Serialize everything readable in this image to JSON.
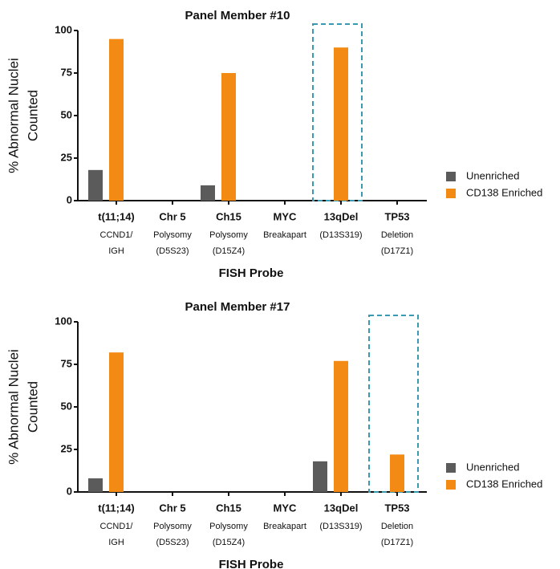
{
  "chart_data": [
    {
      "type": "bar",
      "title": "Panel Member #10",
      "categories": [
        "t(11;14)",
        "Chr 5",
        "Ch15",
        "MYC",
        "13qDel",
        "TP53"
      ],
      "category_sublabels": [
        [
          "CCND1/",
          "IGH"
        ],
        [
          "Polysomy",
          "(D5S23)"
        ],
        [
          "Polysomy",
          "(D15Z4)"
        ],
        [
          "Breakapart"
        ],
        [
          "(D13S319)"
        ],
        [
          "Deletion",
          "(D17Z1)"
        ]
      ],
      "series": [
        {
          "name": "Unenriched",
          "color": "#5b5b5b",
          "values": [
            18,
            0,
            9,
            0,
            0,
            0
          ]
        },
        {
          "name": "CD138 Enriched",
          "color": "#f28a14",
          "values": [
            95,
            0,
            75,
            0,
            90,
            0
          ]
        }
      ],
      "ylim": [
        0,
        100
      ],
      "yticks": [
        0,
        25,
        50,
        75,
        100
      ],
      "ylabel": [
        "% Abnormal Nuclei",
        "Counted"
      ],
      "xlabel": "FISH Probe",
      "highlight_category": 4,
      "highlight_color": "#3a9bb0"
    },
    {
      "type": "bar",
      "title": "Panel Member #17",
      "categories": [
        "t(11;14)",
        "Chr 5",
        "Ch15",
        "MYC",
        "13qDel",
        "TP53"
      ],
      "category_sublabels": [
        [
          "CCND1/",
          "IGH"
        ],
        [
          "Polysomy",
          "(D5S23)"
        ],
        [
          "Polysomy",
          "(D15Z4)"
        ],
        [
          "Breakapart"
        ],
        [
          "(D13S319)"
        ],
        [
          "Deletion",
          "(D17Z1)"
        ]
      ],
      "series": [
        {
          "name": "Unenriched",
          "color": "#5b5b5b",
          "values": [
            8,
            0,
            0,
            0,
            18,
            0
          ]
        },
        {
          "name": "CD138 Enriched",
          "color": "#f28a14",
          "values": [
            82,
            0,
            0,
            0,
            77,
            22
          ]
        }
      ],
      "ylim": [
        0,
        100
      ],
      "yticks": [
        0,
        25,
        50,
        75,
        100
      ],
      "ylabel": [
        "% Abnormal Nuclei",
        "Counted"
      ],
      "xlabel": "FISH Probe",
      "highlight_category": 5,
      "highlight_color": "#3a9bb0"
    }
  ]
}
